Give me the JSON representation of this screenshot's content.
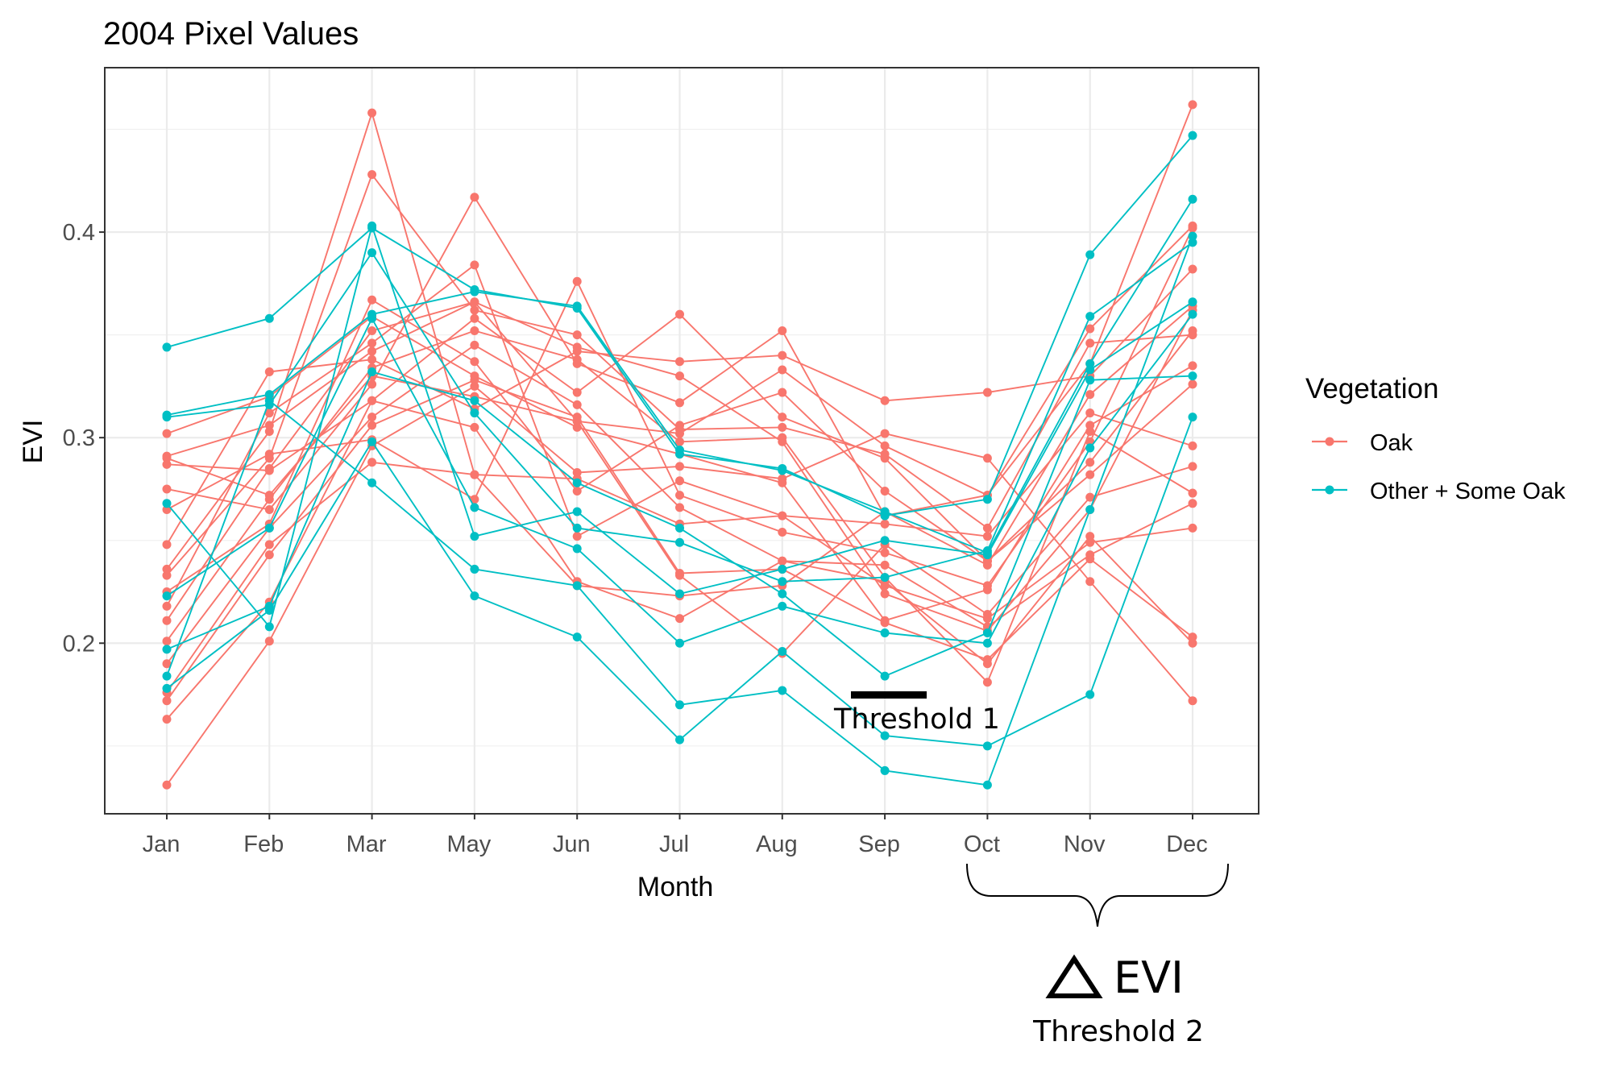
{
  "chart_data": {
    "type": "line",
    "title": "2004 Pixel Values",
    "xlabel": "Month",
    "ylabel": "EVI",
    "categories": [
      "Jan",
      "Feb",
      "Mar",
      "May",
      "Jun",
      "Jul",
      "Aug",
      "Sep",
      "Oct",
      "Nov",
      "Dec"
    ],
    "y_ticks": [
      0.2,
      0.3,
      0.4
    ],
    "ylim": [
      0.117,
      0.48
    ],
    "grid": true,
    "legend": {
      "title": "Vegetation",
      "placement": "right",
      "entries": [
        "Oak",
        "Other + Some Oak"
      ]
    },
    "colors": {
      "Oak": "#F8766D",
      "Other + Some Oak": "#00BFC4"
    },
    "series": [
      {
        "group": "Oak",
        "values": [
          0.131,
          0.201,
          0.296,
          0.325,
          0.283,
          0.286,
          0.28,
          0.302,
          0.29,
          0.23,
          0.172
        ]
      },
      {
        "group": "Oak",
        "values": [
          0.163,
          0.22,
          0.318,
          0.305,
          0.23,
          0.212,
          0.24,
          0.23,
          0.19,
          0.252,
          0.2
        ]
      },
      {
        "group": "Oak",
        "values": [
          0.172,
          0.243,
          0.306,
          0.328,
          0.31,
          0.234,
          0.236,
          0.21,
          0.192,
          0.241,
          0.203
        ]
      },
      {
        "group": "Oak",
        "values": [
          0.176,
          0.248,
          0.288,
          0.282,
          0.28,
          0.258,
          0.262,
          0.228,
          0.212,
          0.249,
          0.256
        ]
      },
      {
        "group": "Oak",
        "values": [
          0.19,
          0.256,
          0.31,
          0.345,
          0.316,
          0.266,
          0.24,
          0.238,
          0.208,
          0.243,
          0.268
        ]
      },
      {
        "group": "Oak",
        "values": [
          0.201,
          0.27,
          0.334,
          0.352,
          0.338,
          0.298,
          0.3,
          0.232,
          0.181,
          0.303,
          0.273
        ]
      },
      {
        "group": "Oak",
        "values": [
          0.211,
          0.285,
          0.352,
          0.366,
          0.308,
          0.233,
          0.195,
          0.248,
          0.214,
          0.271,
          0.286
        ]
      },
      {
        "group": "Oak",
        "values": [
          0.218,
          0.312,
          0.346,
          0.384,
          0.252,
          0.279,
          0.262,
          0.258,
          0.252,
          0.312,
          0.296
        ]
      },
      {
        "group": "Oak",
        "values": [
          0.225,
          0.258,
          0.367,
          0.337,
          0.274,
          0.306,
          0.322,
          0.274,
          0.24,
          0.282,
          0.326
        ]
      },
      {
        "group": "Oak",
        "values": [
          0.233,
          0.29,
          0.428,
          0.362,
          0.35,
          0.304,
          0.305,
          0.292,
          0.256,
          0.346,
          0.35
        ]
      },
      {
        "group": "Oak",
        "values": [
          0.236,
          0.303,
          0.458,
          0.282,
          0.228,
          0.223,
          0.228,
          0.264,
          0.238,
          0.321,
          0.364
        ]
      },
      {
        "group": "Oak",
        "values": [
          0.248,
          0.332,
          0.338,
          0.314,
          0.342,
          0.337,
          0.34,
          0.318,
          0.322,
          0.33,
          0.382
        ]
      },
      {
        "group": "Oak",
        "values": [
          0.265,
          0.292,
          0.299,
          0.27,
          0.376,
          0.272,
          0.254,
          0.244,
          0.228,
          0.298,
          0.402
        ]
      },
      {
        "group": "Oak",
        "values": [
          0.275,
          0.265,
          0.326,
          0.417,
          0.336,
          0.317,
          0.352,
          0.262,
          0.272,
          0.336,
          0.462
        ]
      },
      {
        "group": "Oak",
        "values": [
          0.287,
          0.284,
          0.318,
          0.358,
          0.322,
          0.36,
          0.31,
          0.29,
          0.24,
          0.288,
          0.352
        ]
      },
      {
        "group": "Oak",
        "values": [
          0.291,
          0.306,
          0.342,
          0.366,
          0.344,
          0.33,
          0.298,
          0.224,
          0.206,
          0.265,
          0.362
        ]
      },
      {
        "group": "Oak",
        "values": [
          0.302,
          0.32,
          0.359,
          0.33,
          0.305,
          0.292,
          0.278,
          0.211,
          0.226,
          0.306,
          0.335
        ]
      },
      {
        "group": "Oak",
        "values": [
          0.29,
          0.272,
          0.33,
          0.32,
          0.308,
          0.302,
          0.333,
          0.296,
          0.272,
          0.353,
          0.403
        ]
      },
      {
        "group": "Other + Some Oak",
        "values": [
          0.344,
          0.358,
          0.402,
          0.372,
          0.363,
          0.292,
          0.285,
          0.262,
          0.27,
          0.389,
          0.447
        ]
      },
      {
        "group": "Other + Some Oak",
        "values": [
          0.311,
          0.321,
          0.36,
          0.371,
          0.364,
          0.294,
          0.284,
          0.264,
          0.244,
          0.336,
          0.416
        ]
      },
      {
        "group": "Other + Some Oak",
        "values": [
          0.31,
          0.316,
          0.39,
          0.312,
          0.256,
          0.249,
          0.23,
          0.232,
          0.245,
          0.359,
          0.395
        ]
      },
      {
        "group": "Other + Some Oak",
        "values": [
          0.268,
          0.208,
          0.403,
          0.252,
          0.264,
          0.224,
          0.236,
          0.25,
          0.243,
          0.333,
          0.366
        ]
      },
      {
        "group": "Other + Some Oak",
        "values": [
          0.223,
          0.256,
          0.358,
          0.266,
          0.246,
          0.2,
          0.218,
          0.205,
          0.2,
          0.295,
          0.36
        ]
      },
      {
        "group": "Other + Some Oak",
        "values": [
          0.197,
          0.218,
          0.332,
          0.318,
          0.278,
          0.256,
          0.224,
          0.184,
          0.205,
          0.328,
          0.33
        ]
      },
      {
        "group": "Other + Some Oak",
        "values": [
          0.184,
          0.318,
          0.278,
          0.236,
          0.228,
          0.17,
          0.177,
          0.138,
          0.131,
          0.265,
          0.398
        ]
      },
      {
        "group": "Other + Some Oak",
        "values": [
          0.178,
          0.216,
          0.298,
          0.223,
          0.203,
          0.153,
          0.196,
          0.155,
          0.15,
          0.175,
          0.31
        ]
      }
    ],
    "annotations": {
      "threshold1_label": "Threshold 1",
      "delta_label": "EVI",
      "threshold2_label": "Threshold 2"
    }
  }
}
